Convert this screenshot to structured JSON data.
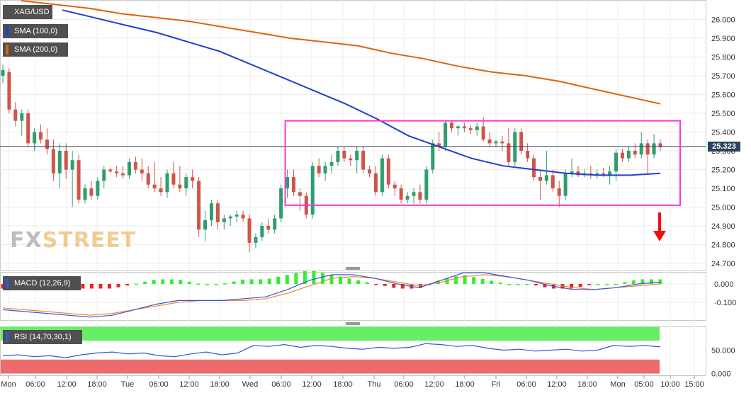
{
  "symbol": "XAG/USD",
  "indicators": {
    "sma100": {
      "label": "SMA (100,0)",
      "color": "#1f3fd0"
    },
    "sma200": {
      "label": "SMA (200,0)",
      "color": "#e0620f"
    },
    "macd": {
      "label": "MACD (12,26,9)"
    },
    "rsi": {
      "label": "RSI (14,70,30,1)"
    }
  },
  "watermark": {
    "fx": "FX",
    "street": "STREET"
  },
  "last_price": "25.323",
  "colors": {
    "up": "#2e9e6e",
    "down": "#d0544a",
    "box": "#ff33dd",
    "arrow": "#ee1111",
    "macd_line": "#3355dd",
    "signal_line": "#ee8833",
    "hist_pos": "#33ee33",
    "hist_neg": "#ee2222",
    "rsi_overbought": "#66ee66",
    "rsi_oversold": "#ee6b6b"
  },
  "chart_data": [
    {
      "type": "candlestick",
      "panel": "price",
      "ylim": [
        24.7,
        26.1
      ],
      "y_ticks": [
        "26.000",
        "25.900",
        "25.800",
        "25.700",
        "25.600",
        "25.500",
        "25.400",
        "25.300",
        "25.200",
        "25.100",
        "25.000",
        "24.900",
        "24.800",
        "24.700"
      ],
      "x_ticks": [
        "Mon",
        "06:00",
        "12:00",
        "18:00",
        "Tue",
        "06:00",
        "12:00",
        "18:00",
        "Wed",
        "06:00",
        "12:00",
        "18:00",
        "Thu",
        "06:00",
        "12:00",
        "18:00",
        "Fri",
        "06:00",
        "12:00",
        "18:00",
        "Mon",
        "05:00",
        "10:00",
        "15:00"
      ],
      "grid": true,
      "series": [
        {
          "name": "SMA (100,0)",
          "values": [
            26.05,
            26.01,
            25.97,
            25.93,
            25.88,
            25.83,
            25.76,
            25.69,
            25.62,
            25.55,
            25.47,
            25.38,
            25.32,
            25.26,
            25.22,
            25.2,
            25.18,
            25.17,
            25.17,
            25.18
          ]
        },
        {
          "name": "SMA (200,0)",
          "values": [
            26.1,
            26.08,
            26.06,
            26.03,
            26.01,
            25.99,
            25.96,
            25.93,
            25.9,
            25.88,
            25.86,
            25.82,
            25.79,
            25.75,
            25.72,
            25.7,
            25.67,
            25.63,
            25.59,
            25.55
          ]
        }
      ],
      "candles_ohlc": [
        [
          25.7,
          25.76,
          25.66,
          25.73
        ],
        [
          25.72,
          25.74,
          25.5,
          25.52
        ],
        [
          25.52,
          25.56,
          25.43,
          25.46
        ],
        [
          25.46,
          25.52,
          25.38,
          25.5
        ],
        [
          25.5,
          25.52,
          25.32,
          25.34
        ],
        [
          25.34,
          25.42,
          25.3,
          25.4
        ],
        [
          25.4,
          25.44,
          25.34,
          25.36
        ],
        [
          25.36,
          25.42,
          25.28,
          25.31
        ],
        [
          25.31,
          25.36,
          25.14,
          25.18
        ],
        [
          25.18,
          25.34,
          25.1,
          25.3
        ],
        [
          25.3,
          25.34,
          25.15,
          25.2
        ],
        [
          25.2,
          25.3,
          25.0,
          25.25
        ],
        [
          25.25,
          25.28,
          25.02,
          25.04
        ],
        [
          25.04,
          25.12,
          25.02,
          25.1
        ],
        [
          25.1,
          25.14,
          25.04,
          25.06
        ],
        [
          25.06,
          25.16,
          25.04,
          25.14
        ],
        [
          25.14,
          25.22,
          25.1,
          25.2
        ],
        [
          25.2,
          25.21,
          25.18,
          25.19
        ],
        [
          25.19,
          25.22,
          25.16,
          25.18
        ],
        [
          25.18,
          25.22,
          25.15,
          25.17
        ],
        [
          25.17,
          25.26,
          25.15,
          25.24
        ],
        [
          25.24,
          25.27,
          25.18,
          25.2
        ],
        [
          25.2,
          25.26,
          25.14,
          25.18
        ],
        [
          25.18,
          25.22,
          25.1,
          25.12
        ],
        [
          25.12,
          25.24,
          25.08,
          25.1
        ],
        [
          25.1,
          25.16,
          25.06,
          25.08
        ],
        [
          25.08,
          25.2,
          25.05,
          25.18
        ],
        [
          25.18,
          25.24,
          25.1,
          25.12
        ],
        [
          25.12,
          25.22,
          25.08,
          25.1
        ],
        [
          25.1,
          25.18,
          25.06,
          25.16
        ],
        [
          25.16,
          25.2,
          25.1,
          25.14
        ],
        [
          25.14,
          25.16,
          24.84,
          24.88
        ],
        [
          24.88,
          24.98,
          24.82,
          24.93
        ],
        [
          24.93,
          25.04,
          24.9,
          25.02
        ],
        [
          25.02,
          25.04,
          24.88,
          24.92
        ],
        [
          24.92,
          24.96,
          24.88,
          24.94
        ],
        [
          24.94,
          24.96,
          24.9,
          24.95
        ],
        [
          24.95,
          24.98,
          24.92,
          24.96
        ],
        [
          24.96,
          24.98,
          24.92,
          24.94
        ],
        [
          24.94,
          24.96,
          24.76,
          24.81
        ],
        [
          24.81,
          24.86,
          24.78,
          24.84
        ],
        [
          24.84,
          24.92,
          24.82,
          24.9
        ],
        [
          24.9,
          24.94,
          24.86,
          24.88
        ],
        [
          24.88,
          24.96,
          24.86,
          24.94
        ],
        [
          24.94,
          25.12,
          24.92,
          25.1
        ],
        [
          25.1,
          25.2,
          25.05,
          25.16
        ],
        [
          25.16,
          25.2,
          25.06,
          25.08
        ],
        [
          25.08,
          25.1,
          24.98,
          25.06
        ],
        [
          25.06,
          25.08,
          24.94,
          24.96
        ],
        [
          24.96,
          25.24,
          24.94,
          25.22
        ],
        [
          25.22,
          25.26,
          25.16,
          25.18
        ],
        [
          25.18,
          25.24,
          25.14,
          25.22
        ],
        [
          25.22,
          25.28,
          25.18,
          25.24
        ],
        [
          25.24,
          25.32,
          25.22,
          25.3
        ],
        [
          25.3,
          25.32,
          25.24,
          25.26
        ],
        [
          25.26,
          25.28,
          25.22,
          25.25
        ],
        [
          25.25,
          25.32,
          25.18,
          25.3
        ],
        [
          25.3,
          25.32,
          25.18,
          25.2
        ],
        [
          25.2,
          25.22,
          25.16,
          25.18
        ],
        [
          25.18,
          25.22,
          25.06,
          25.08
        ],
        [
          25.08,
          25.28,
          25.06,
          25.26
        ],
        [
          25.26,
          25.28,
          25.1,
          25.12
        ],
        [
          25.12,
          25.14,
          25.06,
          25.1
        ],
        [
          25.1,
          25.12,
          25.02,
          25.04
        ],
        [
          25.04,
          25.08,
          25.02,
          25.06
        ],
        [
          25.06,
          25.1,
          25.02,
          25.08
        ],
        [
          25.08,
          25.12,
          25.02,
          25.04
        ],
        [
          25.04,
          25.22,
          25.02,
          25.2
        ],
        [
          25.2,
          25.36,
          25.18,
          25.34
        ],
        [
          25.34,
          25.4,
          25.3,
          25.32
        ],
        [
          25.32,
          25.46,
          25.3,
          25.45
        ],
        [
          25.45,
          25.46,
          25.4,
          25.42
        ],
        [
          25.42,
          25.44,
          25.38,
          25.43
        ],
        [
          25.43,
          25.45,
          25.4,
          25.42
        ],
        [
          25.42,
          25.44,
          25.39,
          25.41
        ],
        [
          25.41,
          25.45,
          25.38,
          25.43
        ],
        [
          25.43,
          25.48,
          25.35,
          25.36
        ],
        [
          25.36,
          25.4,
          25.32,
          25.34
        ],
        [
          25.34,
          25.36,
          25.32,
          25.35
        ],
        [
          25.35,
          25.38,
          25.3,
          25.34
        ],
        [
          25.34,
          25.42,
          25.22,
          25.24
        ],
        [
          25.24,
          25.42,
          25.22,
          25.4
        ],
        [
          25.4,
          25.42,
          25.28,
          25.3
        ],
        [
          25.3,
          25.34,
          25.24,
          25.26
        ],
        [
          25.26,
          25.28,
          25.14,
          25.16
        ],
        [
          25.16,
          25.2,
          25.04,
          25.14
        ],
        [
          25.14,
          25.3,
          25.12,
          25.17
        ],
        [
          25.17,
          25.2,
          25.08,
          25.1
        ],
        [
          25.1,
          25.14,
          25.0,
          25.06
        ],
        [
          25.06,
          25.2,
          25.04,
          25.18
        ],
        [
          25.18,
          25.26,
          25.16,
          25.19
        ],
        [
          25.19,
          25.22,
          25.16,
          25.17
        ],
        [
          25.17,
          25.2,
          25.16,
          25.18
        ],
        [
          25.18,
          25.22,
          25.15,
          25.17
        ],
        [
          25.17,
          25.2,
          25.15,
          25.18
        ],
        [
          25.18,
          25.21,
          25.16,
          25.17
        ],
        [
          25.17,
          25.22,
          25.12,
          25.19
        ],
        [
          25.19,
          25.31,
          25.14,
          25.29
        ],
        [
          25.29,
          25.31,
          25.24,
          25.26
        ],
        [
          25.26,
          25.32,
          25.24,
          25.3
        ],
        [
          25.3,
          25.34,
          25.26,
          25.28
        ],
        [
          25.28,
          25.4,
          25.26,
          25.34
        ],
        [
          25.34,
          25.36,
          25.18,
          25.28
        ],
        [
          25.28,
          25.39,
          25.26,
          25.34
        ],
        [
          25.34,
          25.36,
          25.3,
          25.32
        ]
      ],
      "rectangle": {
        "x_start_index": 45,
        "x_end_index": 104,
        "y_low": 25.01,
        "y_high": 25.46
      },
      "annotation": "down arrow"
    },
    {
      "type": "line",
      "panel": "macd",
      "ylim": [
        -0.2,
        0.05
      ],
      "y_ticks": [
        "0.000",
        "-0.100"
      ],
      "series": [
        {
          "name": "MACD",
          "values": [
            -0.14,
            -0.15,
            -0.16,
            -0.17,
            -0.18,
            -0.17,
            -0.14,
            -0.11,
            -0.09,
            -0.09,
            -0.09,
            -0.08,
            -0.07,
            -0.03,
            0.02,
            0.05,
            0.05,
            0.03,
            0.0,
            -0.02,
            0.02,
            0.06,
            0.06,
            0.04,
            0.02,
            -0.01,
            -0.03,
            -0.03,
            -0.02,
            0.0,
            0.01
          ]
        },
        {
          "name": "Signal",
          "values": [
            -0.13,
            -0.14,
            -0.15,
            -0.16,
            -0.17,
            -0.16,
            -0.14,
            -0.12,
            -0.1,
            -0.09,
            -0.09,
            -0.09,
            -0.08,
            -0.05,
            -0.01,
            0.03,
            0.04,
            0.03,
            0.01,
            -0.01,
            0.01,
            0.04,
            0.05,
            0.04,
            0.02,
            0.0,
            -0.02,
            -0.03,
            -0.02,
            -0.01,
            0.0
          ]
        }
      ]
    },
    {
      "type": "line",
      "panel": "rsi",
      "ylim": [
        0,
        100
      ],
      "y_ticks": [
        "50.000",
        "0.000"
      ],
      "bands": {
        "overbought": 70,
        "oversold": 30
      },
      "series": [
        {
          "name": "RSI",
          "values": [
            38,
            40,
            36,
            38,
            34,
            40,
            44,
            46,
            42,
            44,
            38,
            36,
            42,
            46,
            40,
            44,
            60,
            58,
            62,
            56,
            60,
            58,
            54,
            52,
            56,
            54,
            56,
            64,
            62,
            58,
            60,
            54,
            50,
            52,
            48,
            50,
            52,
            48,
            50,
            60,
            58,
            60,
            57
          ]
        }
      ]
    }
  ]
}
